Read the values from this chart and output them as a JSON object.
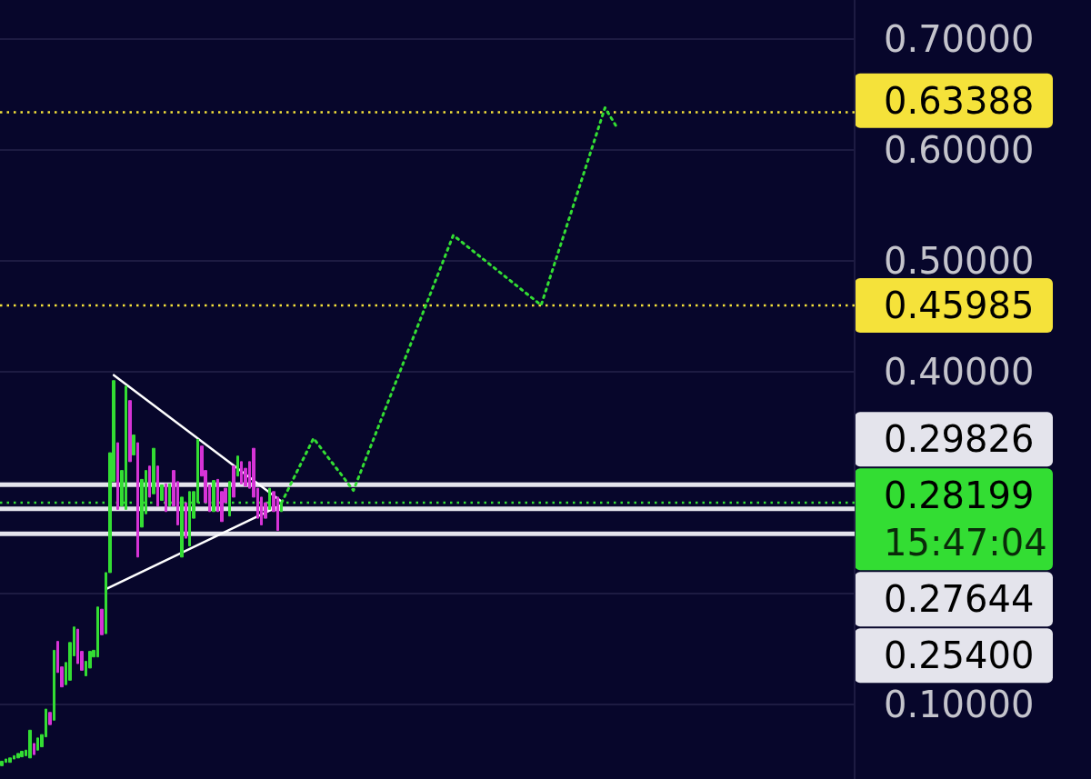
{
  "chart_data": {
    "type": "candlestick",
    "categories": [
      null,
      null,
      null,
      null,
      null,
      null,
      null,
      null,
      null,
      null,
      null,
      null,
      null,
      null,
      null,
      null,
      null,
      null,
      null,
      null,
      null,
      null,
      null,
      null,
      null,
      null,
      null,
      null,
      null,
      null,
      null,
      null,
      null,
      null,
      null,
      null,
      null,
      null,
      null,
      null,
      null,
      null,
      null,
      null,
      null,
      null,
      null,
      null,
      null,
      null,
      null,
      null,
      null,
      null,
      null,
      null,
      null,
      null,
      null,
      null,
      null,
      null,
      null,
      null,
      null,
      null,
      null,
      null,
      null,
      null,
      null,
      null,
      null,
      null,
      null,
      null,
      null,
      null,
      null,
      null,
      null,
      null,
      null,
      null,
      null,
      null,
      null,
      null,
      null,
      null,
      null,
      null,
      null,
      null,
      null,
      null,
      null,
      null,
      null,
      null,
      null,
      null,
      null,
      null,
      null,
      null,
      null,
      null,
      null,
      null,
      null,
      null,
      null,
      null,
      null,
      null,
      null,
      null,
      null,
      null,
      null,
      null,
      null,
      null,
      null,
      null,
      null,
      null,
      null,
      null,
      null,
      null,
      null,
      null,
      null,
      null,
      null,
      null,
      null,
      null,
      null,
      null,
      null,
      null,
      null,
      null,
      null,
      null,
      null,
      null,
      null,
      null,
      null,
      null,
      null,
      null,
      null,
      null,
      null,
      null,
      null,
      null,
      null,
      null,
      null,
      null,
      null,
      null,
      null,
      null,
      null,
      null,
      null,
      null,
      null,
      null,
      null,
      null,
      null,
      null,
      null,
      null,
      null,
      null,
      null,
      null,
      null,
      null,
      null,
      null,
      null,
      null,
      null,
      null,
      null,
      null,
      null,
      null,
      null,
      null,
      null,
      null,
      null,
      null,
      null,
      null,
      null,
      null,
      null,
      null,
      null,
      null,
      null,
      null
    ],
    "ohlc": [
      [
        0.045,
        0.049,
        0.045,
        0.049
      ],
      [
        0.048,
        0.051,
        0.048,
        0.051
      ],
      [
        0.048,
        0.052,
        0.048,
        0.052
      ],
      [
        0.051,
        0.054,
        0.051,
        0.054
      ],
      [
        0.052,
        0.056,
        0.052,
        0.056
      ],
      [
        0.053,
        0.058,
        0.053,
        0.058
      ],
      [
        0.054,
        0.059,
        0.054,
        0.059
      ],
      [
        0.052,
        0.077,
        0.052,
        0.077
      ],
      [
        0.065,
        0.065,
        0.055,
        0.055
      ],
      [
        0.059,
        0.07,
        0.059,
        0.07
      ],
      [
        0.062,
        0.073,
        0.062,
        0.073
      ],
      [
        0.071,
        0.096,
        0.071,
        0.096
      ],
      [
        0.093,
        0.093,
        0.082,
        0.082
      ],
      [
        0.086,
        0.149,
        0.086,
        0.149
      ],
      [
        0.157,
        0.157,
        0.129,
        0.129
      ],
      [
        0.134,
        0.134,
        0.116,
        0.116
      ],
      [
        0.118,
        0.138,
        0.118,
        0.138
      ],
      [
        0.122,
        0.156,
        0.122,
        0.156
      ],
      [
        0.144,
        0.17,
        0.144,
        0.17
      ],
      [
        0.168,
        0.168,
        0.137,
        0.137
      ],
      [
        0.148,
        0.148,
        0.131,
        0.131
      ],
      [
        0.126,
        0.139,
        0.126,
        0.139
      ],
      [
        0.133,
        0.148,
        0.133,
        0.148
      ],
      [
        0.143,
        0.149,
        0.143,
        0.149
      ],
      [
        0.143,
        0.188,
        0.143,
        0.188
      ],
      [
        0.186,
        0.186,
        0.163,
        0.163
      ],
      [
        0.164,
        0.219,
        0.164,
        0.219
      ],
      [
        0.219,
        0.327,
        0.219,
        0.327
      ],
      [
        0.301,
        0.392,
        0.301,
        0.392
      ],
      [
        0.336,
        0.336,
        0.276,
        0.276
      ],
      [
        0.279,
        0.311,
        0.279,
        0.311
      ],
      [
        0.276,
        0.387,
        0.276,
        0.387
      ],
      [
        0.374,
        0.374,
        0.319,
        0.319
      ],
      [
        0.325,
        0.343,
        0.325,
        0.343
      ],
      [
        0.336,
        0.336,
        0.233,
        0.233
      ],
      [
        0.26,
        0.303,
        0.26,
        0.303
      ],
      [
        0.272,
        0.311,
        0.272,
        0.311
      ],
      [
        0.315,
        0.315,
        0.287,
        0.287
      ],
      [
        0.29,
        0.331,
        0.29,
        0.331
      ],
      [
        0.315,
        0.315,
        0.279,
        0.279
      ],
      [
        0.284,
        0.298,
        0.284,
        0.298
      ],
      [
        0.299,
        0.299,
        0.274,
        0.274
      ],
      [
        0.279,
        0.299,
        0.279,
        0.299
      ],
      [
        0.311,
        0.311,
        0.279,
        0.279
      ],
      [
        0.301,
        0.301,
        0.262,
        0.262
      ],
      [
        0.233,
        0.287,
        0.233,
        0.287
      ],
      [
        0.282,
        0.282,
        0.25,
        0.25
      ],
      [
        0.243,
        0.292,
        0.243,
        0.292
      ],
      [
        0.268,
        0.292,
        0.268,
        0.292
      ],
      [
        0.282,
        0.339,
        0.282,
        0.339
      ],
      [
        0.333,
        0.333,
        0.306,
        0.306
      ],
      [
        0.311,
        0.311,
        0.282,
        0.282
      ],
      [
        0.298,
        0.298,
        0.274,
        0.274
      ],
      [
        0.274,
        0.302,
        0.274,
        0.302
      ],
      [
        0.303,
        0.303,
        0.274,
        0.274
      ],
      [
        0.292,
        0.292,
        0.265,
        0.265
      ],
      [
        0.295,
        0.295,
        0.282,
        0.282
      ],
      [
        0.27,
        0.301,
        0.27,
        0.301
      ],
      [
        0.315,
        0.315,
        0.287,
        0.287
      ],
      [
        0.306,
        0.324,
        0.306,
        0.324
      ],
      [
        0.319,
        0.319,
        0.299,
        0.299
      ],
      [
        0.313,
        0.313,
        0.297,
        0.297
      ],
      [
        0.319,
        0.319,
        0.295,
        0.295
      ],
      [
        0.331,
        0.331,
        0.287,
        0.287
      ],
      [
        0.295,
        0.295,
        0.268,
        0.268
      ],
      [
        0.287,
        0.287,
        0.262,
        0.262
      ],
      [
        0.282,
        0.282,
        0.268,
        0.268
      ],
      [
        0.276,
        0.295,
        0.276,
        0.295
      ],
      [
        0.292,
        0.292,
        0.274,
        0.274
      ],
      [
        0.287,
        0.287,
        0.257,
        0.257
      ],
      [
        0.274,
        0.282,
        0.274,
        0.282
      ],
      null,
      null,
      null,
      null,
      null,
      null,
      null,
      null,
      null,
      null,
      null,
      null,
      null,
      null,
      null,
      null,
      null,
      null,
      null,
      null,
      null,
      null,
      null,
      null,
      null,
      null,
      null,
      null,
      null,
      null,
      null,
      null,
      null,
      null,
      null,
      null,
      null,
      null,
      null,
      null,
      null,
      null,
      null,
      null,
      null,
      null,
      null,
      null,
      null,
      null,
      null,
      null,
      null,
      null,
      null,
      null,
      null,
      null,
      null,
      null,
      null,
      null,
      null,
      null,
      null,
      null,
      null,
      null,
      null,
      null,
      null,
      null,
      null,
      null,
      null,
      null,
      null,
      null,
      null,
      null,
      null,
      null,
      null,
      null,
      null,
      null,
      null,
      null,
      null,
      null,
      null,
      null,
      null,
      null,
      null,
      null,
      null,
      null,
      null,
      null,
      null,
      null,
      null,
      null,
      null,
      null,
      null,
      null,
      null,
      null,
      null,
      null,
      null,
      null,
      null,
      null,
      null,
      null,
      null,
      null,
      null,
      null,
      null,
      null,
      null,
      null,
      null,
      null,
      null,
      null,
      null,
      null,
      null,
      null,
      null,
      null,
      null,
      null,
      null,
      null,
      null,
      null,
      null
    ],
    "colors": [
      "#33dd33",
      "#33dd33",
      "#33dd33",
      "#33dd33",
      "#33dd33",
      "#33dd33",
      "#33dd33",
      "#33dd33",
      "#d633d6",
      "#33dd33",
      "#33dd33",
      "#33dd33",
      "#d633d6",
      "#33dd33",
      "#d633d6",
      "#d633d6",
      "#33dd33",
      "#33dd33",
      "#33dd33",
      "#d633d6",
      "#d633d6",
      "#33dd33",
      "#33dd33",
      "#33dd33",
      "#33dd33",
      "#d633d6",
      "#33dd33",
      "#33dd33",
      "#33dd33",
      "#d633d6",
      "#33dd33",
      "#33dd33",
      "#d633d6",
      "#33dd33",
      "#d633d6",
      "#33dd33",
      "#33dd33",
      "#d633d6",
      "#33dd33",
      "#d633d6",
      "#33dd33",
      "#d633d6",
      "#33dd33",
      "#d633d6",
      "#d633d6",
      "#33dd33",
      "#d633d6",
      "#33dd33",
      "#33dd33",
      "#33dd33",
      "#d633d6",
      "#d633d6",
      "#d633d6",
      "#33dd33",
      "#d633d6",
      "#d633d6",
      "#d633d6",
      "#33dd33",
      "#d633d6",
      "#33dd33",
      "#d633d6",
      "#d633d6",
      "#d633d6",
      "#d633d6",
      "#d633d6",
      "#d633d6",
      "#d633d6",
      "#33dd33",
      "#d633d6",
      "#d633d6",
      "#33dd33",
      null,
      null,
      null,
      null,
      null,
      null,
      null,
      null,
      null,
      null,
      null,
      null,
      null,
      null,
      null,
      null,
      null,
      null,
      null,
      null,
      null,
      null,
      null,
      null,
      null,
      null,
      null,
      null,
      null,
      null,
      null,
      null,
      null,
      null,
      null,
      null,
      null,
      null,
      null,
      null,
      null,
      null,
      null,
      null,
      null,
      null,
      null,
      null,
      null,
      null,
      null,
      null,
      null,
      null,
      null,
      null,
      null,
      null,
      null,
      null,
      null,
      null,
      null,
      null,
      null,
      null,
      null,
      null,
      null,
      null,
      null,
      null,
      null,
      null,
      null,
      null,
      null,
      null,
      null,
      null,
      null,
      null,
      null,
      null,
      null,
      null,
      null,
      null,
      null,
      null,
      null,
      null,
      null,
      null,
      null,
      null,
      null,
      null,
      null,
      null,
      null,
      null,
      null,
      null,
      null,
      null,
      null,
      null,
      null,
      null,
      null,
      null,
      null,
      null,
      null,
      null,
      null,
      null,
      null,
      null,
      null,
      null,
      null,
      null,
      null,
      null,
      null,
      null,
      null,
      null,
      null,
      null,
      null,
      null,
      null,
      null,
      null,
      null,
      null,
      null,
      null,
      null,
      null
    ],
    "series": [
      {
        "type": "line",
        "color": "#ffffff",
        "line_style": "solid",
        "values": [
          null,
          null,
          null,
          null,
          null,
          null,
          null,
          null,
          null,
          null,
          null,
          null,
          null,
          null,
          null,
          null,
          null,
          null,
          null,
          null,
          null,
          null,
          null,
          null,
          null,
          null,
          null,
          null,
          0.397,
          null,
          null,
          null,
          null,
          null,
          null,
          null,
          null,
          null,
          null,
          null,
          null,
          null,
          null,
          null,
          null,
          null,
          null,
          null,
          null,
          null,
          null,
          null,
          null,
          null,
          null,
          null,
          null,
          null,
          null,
          null,
          null,
          null,
          null,
          null,
          null,
          null,
          null,
          null,
          null,
          null,
          0.283,
          null,
          null,
          null,
          null,
          null,
          null,
          null,
          null,
          null,
          null,
          null,
          null,
          null,
          null,
          null,
          null,
          null,
          null,
          null,
          null,
          null,
          null,
          null,
          null,
          null,
          null,
          null,
          null,
          null,
          null,
          null,
          null,
          null,
          null,
          null,
          null,
          null,
          null,
          null,
          null,
          null,
          null,
          null,
          null,
          null,
          null,
          null,
          null,
          null,
          null,
          null,
          null,
          null,
          null,
          null,
          null,
          null,
          null,
          null,
          null,
          null,
          null,
          null,
          null,
          null,
          null,
          null,
          null,
          null,
          null,
          null,
          null,
          null,
          null,
          null,
          null,
          null,
          null,
          null,
          null,
          null,
          null,
          null,
          null,
          null,
          null,
          null,
          null,
          null,
          null,
          null,
          null,
          null,
          null,
          null,
          null,
          null,
          null,
          null,
          null,
          null,
          null,
          null,
          null,
          null,
          null,
          null,
          null,
          null,
          null,
          null,
          null,
          null,
          null,
          null,
          null,
          null,
          null,
          null,
          null,
          null,
          null,
          null,
          null,
          null,
          null,
          null,
          null,
          null,
          null,
          null,
          null,
          null,
          null,
          null,
          null,
          null,
          null,
          null,
          null,
          null,
          null,
          null
        ]
      },
      {
        "type": "line",
        "color": "#ffffff",
        "line_style": "solid",
        "values": [
          null,
          null,
          null,
          null,
          null,
          null,
          null,
          null,
          null,
          null,
          null,
          null,
          null,
          null,
          null,
          null,
          null,
          null,
          null,
          null,
          null,
          null,
          null,
          null,
          null,
          null,
          0.204,
          null,
          null,
          null,
          null,
          null,
          null,
          null,
          null,
          null,
          null,
          null,
          null,
          null,
          null,
          null,
          null,
          null,
          null,
          null,
          null,
          null,
          null,
          null,
          null,
          null,
          null,
          null,
          null,
          null,
          null,
          null,
          null,
          null,
          null,
          null,
          null,
          null,
          null,
          null,
          null,
          null,
          null,
          null,
          0.28,
          null,
          null,
          null,
          null,
          null,
          null,
          null,
          null,
          null,
          null,
          null,
          null,
          null,
          null,
          null,
          null,
          null,
          null,
          null,
          null,
          null,
          null,
          null,
          null,
          null,
          null,
          null,
          null,
          null,
          null,
          null,
          null,
          null,
          null,
          null,
          null,
          null,
          null,
          null,
          null,
          null,
          null,
          null,
          null,
          null,
          null,
          null,
          null,
          null,
          null,
          null,
          null,
          null,
          null,
          null,
          null,
          null,
          null,
          null,
          null,
          null,
          null,
          null,
          null,
          null,
          null,
          null,
          null,
          null,
          null,
          null,
          null,
          null,
          null,
          null,
          null,
          null,
          null,
          null,
          null,
          null,
          null,
          null,
          null,
          null,
          null,
          null,
          null,
          null,
          null,
          null,
          null,
          null,
          null,
          null,
          null,
          null,
          null,
          null,
          null,
          null,
          null,
          null,
          null,
          null,
          null,
          null,
          null,
          null,
          null,
          null,
          null,
          null,
          null,
          null,
          null,
          null,
          null,
          null,
          null,
          null,
          null,
          null,
          null,
          null,
          null,
          null,
          null,
          null,
          null,
          null,
          null,
          null,
          null,
          null,
          null,
          null,
          null,
          null,
          null,
          null,
          null,
          null
        ]
      },
      {
        "type": "line",
        "color": "#33dd33",
        "line_style": "dotted",
        "values": [
          null,
          null,
          null,
          null,
          null,
          null,
          null,
          null,
          null,
          null,
          null,
          null,
          null,
          null,
          null,
          null,
          null,
          null,
          null,
          null,
          null,
          null,
          null,
          null,
          null,
          null,
          null,
          null,
          null,
          null,
          null,
          null,
          null,
          null,
          null,
          null,
          null,
          null,
          null,
          null,
          null,
          null,
          null,
          null,
          null,
          null,
          null,
          null,
          null,
          null,
          null,
          null,
          null,
          null,
          null,
          null,
          null,
          null,
          null,
          null,
          null,
          null,
          null,
          null,
          null,
          null,
          null,
          null,
          null,
          null,
          0.282,
          null,
          null,
          null,
          null,
          null,
          null,
          null,
          0.34,
          null,
          null,
          null,
          null,
          null,
          null,
          null,
          null,
          null,
          0.293,
          null,
          null,
          null,
          null,
          null,
          null,
          null,
          null,
          null,
          null,
          null,
          null,
          null,
          null,
          null,
          null,
          null,
          null,
          null,
          null,
          null,
          null,
          null,
          null,
          0.523,
          null,
          null,
          null,
          null,
          null,
          null,
          null,
          null,
          null,
          null,
          null,
          null,
          null,
          null,
          null,
          null,
          null,
          null,
          null,
          null,
          null,
          0.46,
          null,
          null,
          null,
          null,
          null,
          null,
          null,
          null,
          null,
          null,
          null,
          null,
          null,
          null,
          null,
          0.638,
          null,
          null,
          0.62,
          null,
          null,
          null,
          null,
          null,
          null,
          null,
          null,
          null,
          null,
          null,
          null,
          null,
          null,
          null,
          null,
          null,
          null,
          null,
          null,
          null,
          null,
          null,
          null,
          null,
          null,
          null,
          null,
          null,
          null,
          null,
          null,
          null,
          null,
          null,
          null,
          null,
          null,
          null,
          null,
          null,
          null,
          null,
          null,
          null,
          null,
          null,
          null,
          null,
          null,
          null,
          null,
          null,
          null,
          null,
          null,
          null,
          null,
          null
        ]
      }
    ],
    "marker": "none",
    "ylim": [
      0.033,
      0.735
    ],
    "yticks": [
      {
        "value": 0.1,
        "label": "0.10000"
      },
      {
        "value": 0.2,
        "label": null
      },
      {
        "value": 0.3,
        "label": null
      },
      {
        "value": 0.4,
        "label": "0.40000"
      },
      {
        "value": 0.5,
        "label": "0.50000"
      },
      {
        "value": 0.6,
        "label": "0.60000"
      },
      {
        "value": 0.7,
        "label": "0.70000"
      }
    ],
    "grid": "y",
    "tick_labels": "y",
    "ref_lines": [
      {
        "axis": "y",
        "value": 0.63388,
        "label": "0.63388",
        "color": "#f5e23a",
        "line_style": "dotted"
      },
      {
        "axis": "y",
        "value": 0.45985,
        "label": "0.45985",
        "color": "#f5e23a",
        "line_style": "dotted"
      },
      {
        "axis": "y",
        "value": 0.29826,
        "label": "0.29826",
        "color": "#e4e4ec",
        "line_style": "solid"
      },
      {
        "axis": "y",
        "value": 0.28199,
        "label": "0.28199",
        "color": "#33dd33",
        "line_style": "dotted"
      },
      {
        "axis": "y",
        "value": 0.27644,
        "label": "0.27644",
        "color": "#e4e4ec",
        "line_style": "solid"
      },
      {
        "axis": "y",
        "value": 0.254,
        "label": "0.25400",
        "color": "#e4e4ec",
        "line_style": "solid"
      }
    ],
    "annotations": [
      "15:47:04"
    ]
  }
}
